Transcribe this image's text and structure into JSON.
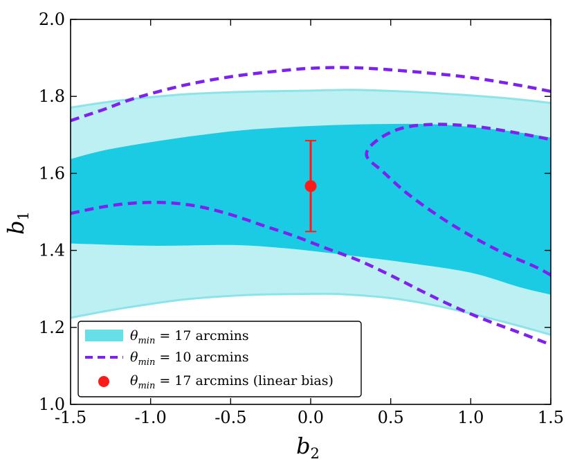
{
  "chart_data": {
    "type": "contour",
    "title": "",
    "xlabel": "b",
    "xlabel_sub": "2",
    "ylabel": "b",
    "ylabel_sub": "1",
    "xlim": [
      -1.5,
      1.5
    ],
    "ylim": [
      1.0,
      2.0
    ],
    "xticks": [
      -1.5,
      -1.0,
      -0.5,
      0.0,
      0.5,
      1.0,
      1.5
    ],
    "xtick_labels": [
      "-1.5",
      "-1.0",
      "-0.5",
      "0.0",
      "0.5",
      "1.0",
      "1.5"
    ],
    "yticks": [
      1.0,
      1.2,
      1.4,
      1.6,
      1.8,
      2.0
    ],
    "ytick_labels": [
      "1.0",
      "1.2",
      "1.4",
      "1.6",
      "1.8",
      "2.0"
    ],
    "colors": {
      "outer_band": "#bdf0f3",
      "outer_edge": "#8ce4ea",
      "inner_band": "#1acbe3",
      "dashed": "#7f21ee",
      "point": "#ff1a1a",
      "legend_patch": "#66dfe8"
    },
    "series": [
      {
        "name": "theta_min_17_outer_2sigma",
        "upper": [
          [
            -1.5,
            1.771
          ],
          [
            -1.2,
            1.789
          ],
          [
            -0.8,
            1.805
          ],
          [
            -0.4,
            1.812
          ],
          [
            0.0,
            1.815
          ],
          [
            0.25,
            1.817
          ],
          [
            0.5,
            1.814
          ],
          [
            0.8,
            1.808
          ],
          [
            1.2,
            1.796
          ],
          [
            1.5,
            1.783
          ]
        ],
        "lower": [
          [
            -1.5,
            1.225
          ],
          [
            -1.2,
            1.248
          ],
          [
            -0.8,
            1.272
          ],
          [
            -0.4,
            1.284
          ],
          [
            0.0,
            1.287
          ],
          [
            0.2,
            1.286
          ],
          [
            0.5,
            1.276
          ],
          [
            0.8,
            1.255
          ],
          [
            1.2,
            1.215
          ],
          [
            1.5,
            1.181
          ]
        ]
      },
      {
        "name": "theta_min_17_inner_1sigma",
        "upper": [
          [
            -1.5,
            1.637
          ],
          [
            -1.3,
            1.659
          ],
          [
            -1.0,
            1.681
          ],
          [
            -0.7,
            1.699
          ],
          [
            -0.4,
            1.713
          ],
          [
            0.0,
            1.723
          ],
          [
            0.4,
            1.728
          ],
          [
            0.8,
            1.727
          ],
          [
            1.2,
            1.712
          ],
          [
            1.5,
            1.693
          ]
        ],
        "lower": [
          [
            -1.5,
            1.418
          ],
          [
            -1.0,
            1.412
          ],
          [
            -0.5,
            1.414
          ],
          [
            -0.2,
            1.407
          ],
          [
            0.0,
            1.399
          ],
          [
            0.3,
            1.384
          ],
          [
            0.6,
            1.368
          ],
          [
            1.0,
            1.342
          ],
          [
            1.3,
            1.305
          ],
          [
            1.5,
            1.285
          ]
        ]
      },
      {
        "name": "theta_min_10_top",
        "points": [
          [
            -1.5,
            1.737
          ],
          [
            -1.3,
            1.765
          ],
          [
            -1.1,
            1.795
          ],
          [
            -0.8,
            1.828
          ],
          [
            -0.5,
            1.851
          ],
          [
            -0.2,
            1.866
          ],
          [
            0.0,
            1.873
          ],
          [
            0.2,
            1.875
          ],
          [
            0.4,
            1.872
          ],
          [
            0.7,
            1.862
          ],
          [
            1.0,
            1.849
          ],
          [
            1.3,
            1.829
          ],
          [
            1.5,
            1.813
          ]
        ]
      },
      {
        "name": "theta_min_10_lower",
        "points": [
          [
            -1.5,
            1.496
          ],
          [
            -1.3,
            1.513
          ],
          [
            -1.1,
            1.523
          ],
          [
            -0.9,
            1.524
          ],
          [
            -0.7,
            1.514
          ],
          [
            -0.5,
            1.493
          ],
          [
            -0.3,
            1.465
          ],
          [
            -0.1,
            1.437
          ],
          [
            0.1,
            1.405
          ],
          [
            0.3,
            1.374
          ],
          [
            0.5,
            1.335
          ],
          [
            0.7,
            1.293
          ],
          [
            0.9,
            1.253
          ],
          [
            1.1,
            1.218
          ],
          [
            1.3,
            1.187
          ],
          [
            1.5,
            1.155
          ]
        ]
      },
      {
        "name": "theta_min_10_right_loop",
        "points": [
          [
            1.5,
            1.336
          ],
          [
            1.4,
            1.358
          ],
          [
            1.2,
            1.394
          ],
          [
            1.0,
            1.438
          ],
          [
            0.8,
            1.489
          ],
          [
            0.6,
            1.549
          ],
          [
            0.45,
            1.605
          ],
          [
            0.35,
            1.645
          ],
          [
            0.4,
            1.681
          ],
          [
            0.55,
            1.715
          ],
          [
            0.75,
            1.727
          ],
          [
            1.0,
            1.723
          ],
          [
            1.25,
            1.708
          ],
          [
            1.5,
            1.688
          ]
        ]
      }
    ],
    "point": {
      "x": 0.0,
      "y": 1.567,
      "yerr_low": 1.449,
      "yerr_high": 1.685
    },
    "legend": {
      "placement": "lower-left",
      "entries": [
        {
          "symbol": "θ",
          "sub": "min",
          "text": " = 17 arcmins",
          "style": "patch"
        },
        {
          "symbol": "θ",
          "sub": "min",
          "text": " = 10 arcmins",
          "style": "dashed"
        },
        {
          "symbol": "θ",
          "sub": "min",
          "text": " = 17 arcmins (linear bias)",
          "style": "point"
        }
      ]
    }
  }
}
